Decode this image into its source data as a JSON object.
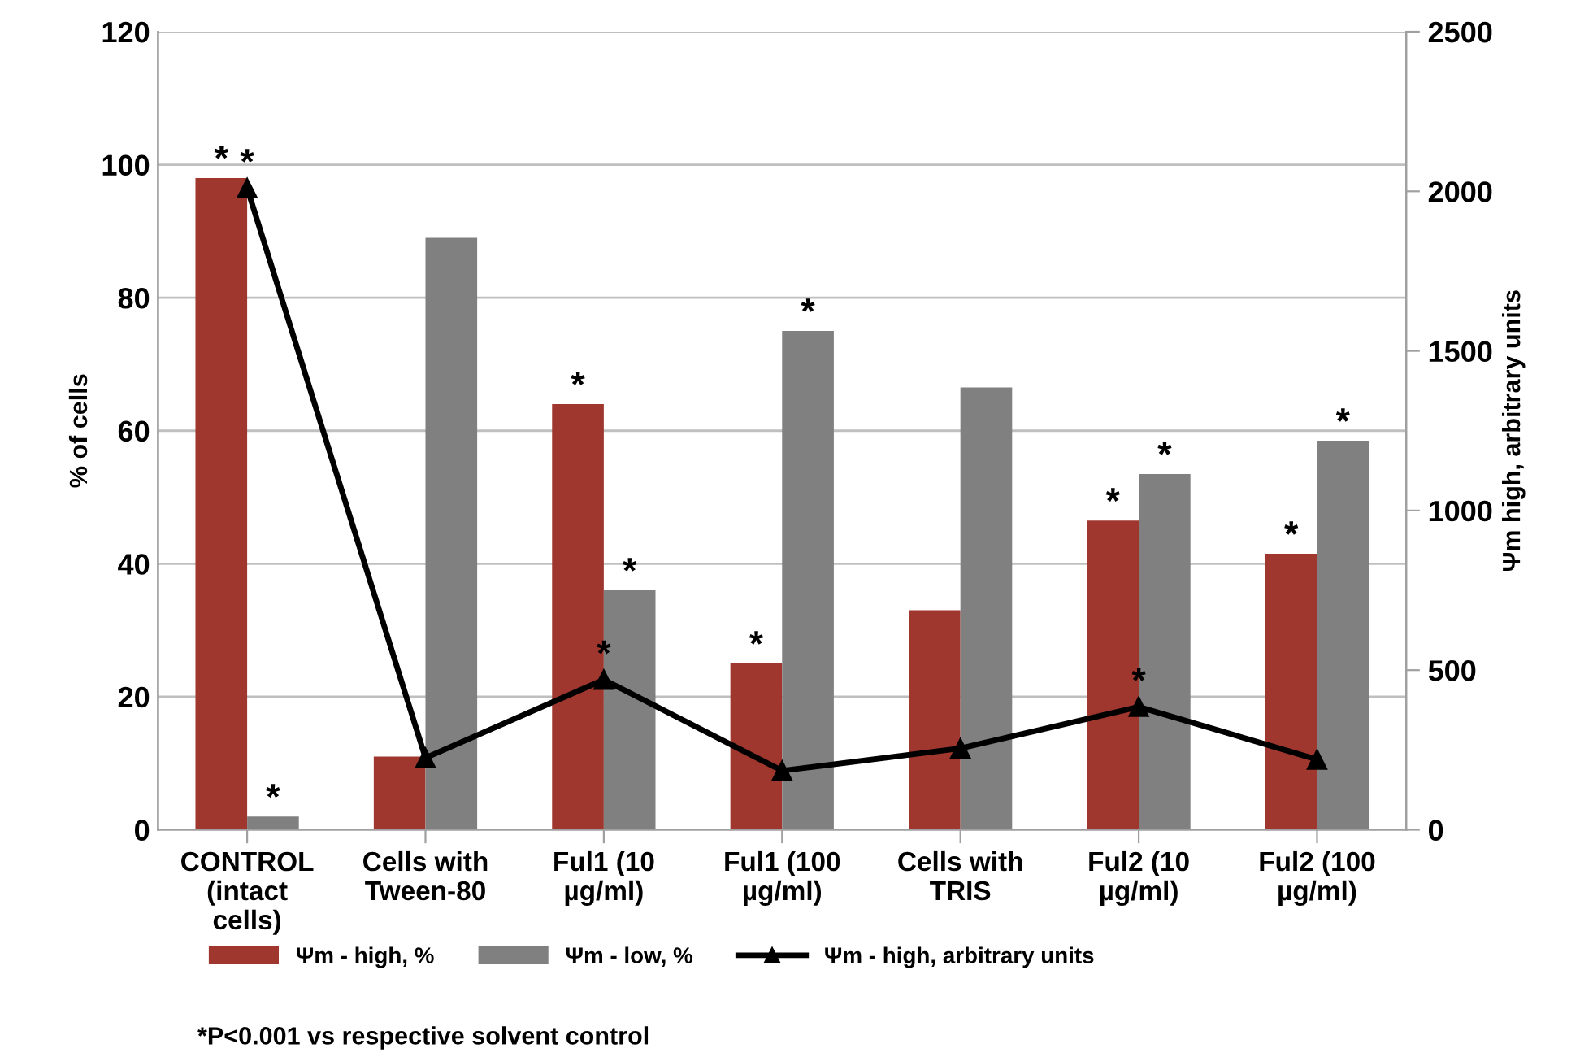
{
  "chart_data": {
    "type": "bar",
    "categories": [
      "CONTROL\n(intact\ncells)",
      "Cells with\nTween-80",
      "Ful1 (10\nµg/ml)",
      "Ful1 (100\nµg/ml)",
      "Cells with\nTRIS",
      "Ful2 (10\nµg/ml)",
      "Ful2 (100\nµg/ml)"
    ],
    "series": [
      {
        "name": "Ψm - high, %",
        "color": "#a0372f",
        "values": [
          98,
          11,
          64,
          25,
          33,
          46.5,
          41.5
        ],
        "value_labels": [
          "*",
          null,
          "*",
          "*",
          null,
          "*",
          "*"
        ]
      },
      {
        "name": "Ψm - low, %",
        "color": "#808080",
        "values": [
          2,
          89,
          36,
          75,
          66.5,
          53.5,
          58.5
        ],
        "value_labels": [
          "*",
          null,
          "*",
          "*",
          null,
          "*",
          "*"
        ]
      },
      {
        "name": "Ψm - high, arbitrary units",
        "type": "line",
        "axis": "y2",
        "color": "#000000",
        "marker": "triangle",
        "values": [
          2010,
          225,
          470,
          185,
          255,
          385,
          220
        ],
        "value_labels": [
          "*",
          null,
          "*",
          null,
          null,
          "*",
          null
        ]
      }
    ],
    "ylabel": "% of cells",
    "y2label": "Ψm high, arbitrary units",
    "ylim": [
      0,
      120
    ],
    "yticks": [
      0,
      20,
      40,
      60,
      80,
      100,
      120
    ],
    "y2lim": [
      0,
      2500
    ],
    "y2ticks": [
      0,
      500,
      1000,
      1500,
      2000,
      2500
    ],
    "grid": "y",
    "legend": "bottom",
    "annotations": [
      "*P<0.001 vs respective solvent control"
    ]
  }
}
